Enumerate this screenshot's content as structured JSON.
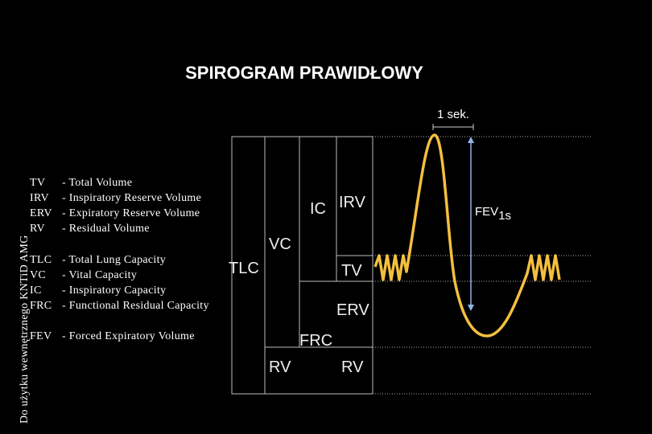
{
  "title": "SPIROGRAM PRAWIDŁOWY",
  "watermark": "Do użytku wewnętrznego KNTiD AMG",
  "time_label": "1 sek.",
  "legend": [
    {
      "abbr": "TV",
      "text": "- Total Volume"
    },
    {
      "abbr": "IRV",
      "text": "- Inspiratory Reserve Volume"
    },
    {
      "abbr": "ERV",
      "text": "- Expiratory Reserve Volume"
    },
    {
      "abbr": "RV",
      "text": "- Residual Volume"
    },
    {
      "abbr": "TLC",
      "text": "- Total Lung Capacity"
    },
    {
      "abbr": "VC",
      "text": "- Vital Capacity"
    },
    {
      "abbr": "IC",
      "text": "- Inspiratory Capacity"
    },
    {
      "abbr": "FRC",
      "text": "- Functional Residual Capacity"
    },
    {
      "abbr": "FEV",
      "text": "- Forced Expiratory Volume"
    }
  ],
  "labels": {
    "tlc": "TLC",
    "vc": "VC",
    "ic": "IC",
    "irv": "IRV",
    "tv": "TV",
    "erv": "ERV",
    "frc": "FRC",
    "rv_bar": "RV",
    "rv_curve": "RV"
  },
  "fev": {
    "main": "FEV",
    "sub": "1s"
  }
}
